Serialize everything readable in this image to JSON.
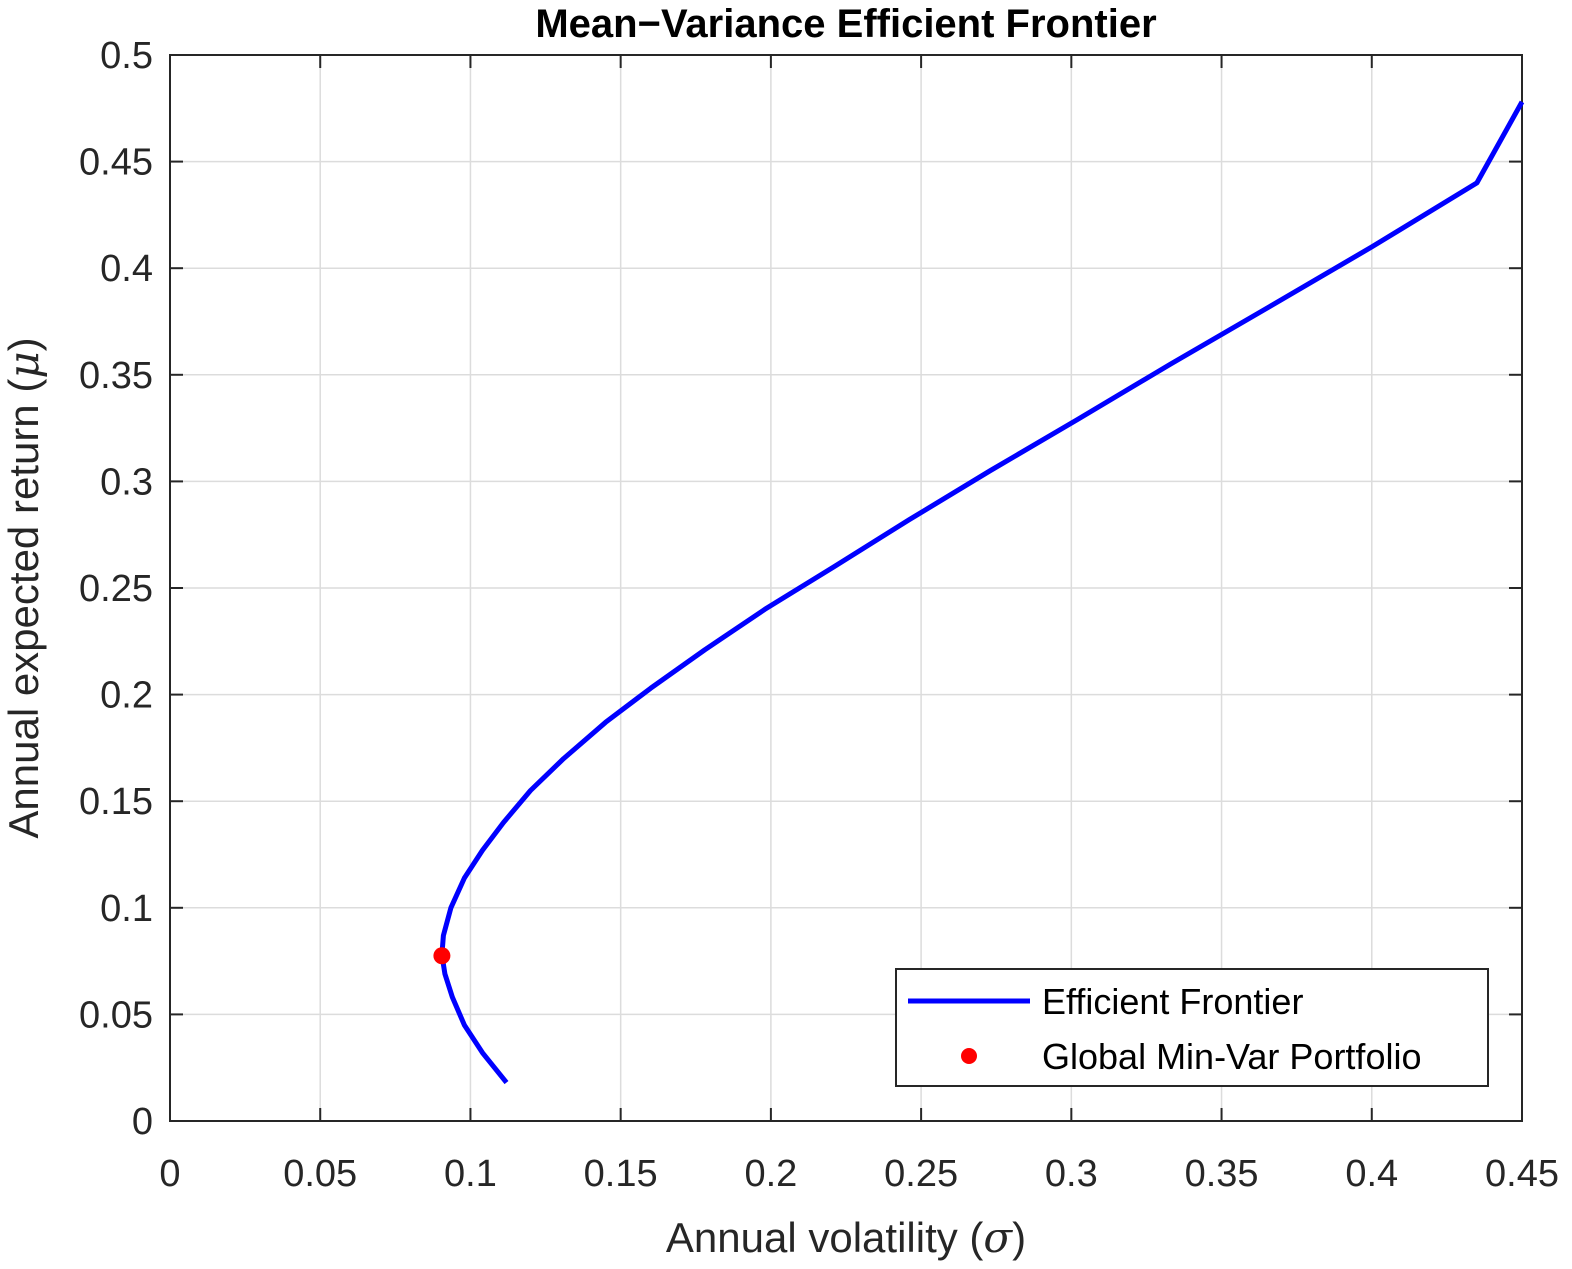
{
  "chart_data": {
    "type": "line",
    "title": "Mean−Variance Efficient Frontier",
    "xlabel": {
      "text": "Annual volatility (",
      "symbol": "σ",
      "close": ")"
    },
    "ylabel": {
      "text": "Annual expected return (",
      "symbol": "μ",
      "close": ")"
    },
    "xlim": [
      0,
      0.45
    ],
    "ylim": [
      0,
      0.5
    ],
    "xticks": [
      "0",
      "0.05",
      "0.1",
      "0.15",
      "0.2",
      "0.25",
      "0.3",
      "0.35",
      "0.4",
      "0.45"
    ],
    "yticks": [
      "0",
      "0.05",
      "0.1",
      "0.15",
      "0.2",
      "0.25",
      "0.3",
      "0.35",
      "0.4",
      "0.45",
      "0.5"
    ],
    "grid": true,
    "legend_position": "bottom-right",
    "series": [
      {
        "name": "Efficient Frontier",
        "kind": "line",
        "color": "#0000ff",
        "x": [
          0.112,
          0.104,
          0.098,
          0.094,
          0.0915,
          0.0905,
          0.091,
          0.0935,
          0.098,
          0.104,
          0.111,
          0.12,
          0.131,
          0.145,
          0.16,
          0.178,
          0.198,
          0.221,
          0.246,
          0.273,
          0.302,
          0.333,
          0.366,
          0.4,
          0.435,
          0.45
        ],
        "y": [
          0.018,
          0.032,
          0.045,
          0.058,
          0.069,
          0.078,
          0.087,
          0.1,
          0.114,
          0.127,
          0.14,
          0.155,
          0.17,
          0.187,
          0.203,
          0.221,
          0.24,
          0.26,
          0.282,
          0.305,
          0.329,
          0.355,
          0.382,
          0.41,
          0.44,
          0.478
        ]
      },
      {
        "name": "Global Min-Var Portfolio",
        "kind": "marker",
        "color": "#ff0000",
        "x": [
          0.0905
        ],
        "y": [
          0.0775
        ]
      }
    ]
  }
}
